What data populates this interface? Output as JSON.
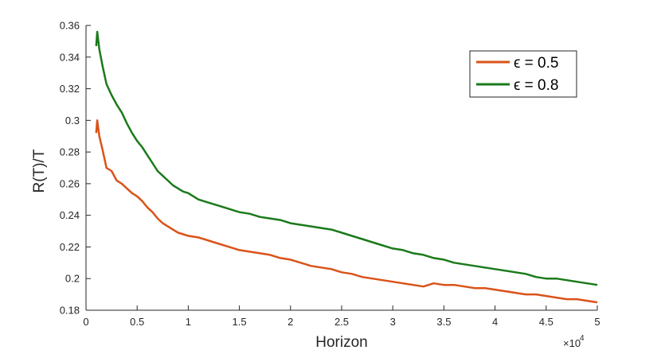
{
  "chart_data": {
    "type": "line",
    "xlabel": "Horizon",
    "ylabel": "R(T)/T",
    "x_exponent_label": "×10",
    "x_exponent_power": "4",
    "xlim": [
      0,
      50000
    ],
    "ylim": [
      0.18,
      0.36
    ],
    "x_ticks": [
      0,
      5000,
      10000,
      15000,
      20000,
      25000,
      30000,
      35000,
      40000,
      45000,
      50000
    ],
    "x_tick_labels": [
      "0",
      "0.5",
      "1",
      "1.5",
      "2",
      "2.5",
      "3",
      "3.5",
      "4",
      "4.5",
      "5"
    ],
    "y_ticks": [
      0.18,
      0.2,
      0.22,
      0.24,
      0.26,
      0.28,
      0.3,
      0.32,
      0.34,
      0.36
    ],
    "y_tick_labels": [
      "0.18",
      "0.2",
      "0.22",
      "0.24",
      "0.26",
      "0.28",
      "0.3",
      "0.32",
      "0.34",
      "0.36"
    ],
    "legend_position": "top-right",
    "series": [
      {
        "name": "ϵ = 0.5",
        "color": "#d95319",
        "x": [
          1000,
          1100,
          1300,
          1600,
          2000,
          2500,
          3000,
          3500,
          4000,
          4500,
          5000,
          5500,
          6000,
          6500,
          7000,
          7500,
          8000,
          8500,
          9000,
          9500,
          10000,
          11000,
          12000,
          13000,
          14000,
          15000,
          16000,
          17000,
          18000,
          19000,
          20000,
          21000,
          22000,
          23000,
          24000,
          25000,
          26000,
          27000,
          28000,
          29000,
          30000,
          31000,
          32000,
          33000,
          34000,
          35000,
          36000,
          37000,
          38000,
          39000,
          40000,
          41000,
          42000,
          43000,
          44000,
          45000,
          46000,
          47000,
          48000,
          49000,
          50000
        ],
        "values": [
          0.292,
          0.3,
          0.29,
          0.282,
          0.27,
          0.268,
          0.262,
          0.26,
          0.257,
          0.254,
          0.252,
          0.249,
          0.245,
          0.242,
          0.238,
          0.235,
          0.233,
          0.231,
          0.229,
          0.228,
          0.227,
          0.226,
          0.224,
          0.222,
          0.22,
          0.218,
          0.217,
          0.216,
          0.215,
          0.213,
          0.212,
          0.21,
          0.208,
          0.207,
          0.206,
          0.204,
          0.203,
          0.201,
          0.2,
          0.199,
          0.198,
          0.197,
          0.196,
          0.195,
          0.197,
          0.196,
          0.196,
          0.195,
          0.194,
          0.194,
          0.193,
          0.192,
          0.191,
          0.19,
          0.19,
          0.189,
          0.188,
          0.187,
          0.187,
          0.186,
          0.185
        ]
      },
      {
        "name": "ϵ = 0.8",
        "color": "#1a7a1a",
        "x": [
          1000,
          1100,
          1300,
          1600,
          2000,
          2500,
          3000,
          3500,
          4000,
          4500,
          5000,
          5500,
          6000,
          6500,
          7000,
          7500,
          8000,
          8500,
          9000,
          9500,
          10000,
          11000,
          12000,
          13000,
          14000,
          15000,
          16000,
          17000,
          18000,
          19000,
          20000,
          21000,
          22000,
          23000,
          24000,
          25000,
          26000,
          27000,
          28000,
          29000,
          30000,
          31000,
          32000,
          33000,
          34000,
          35000,
          36000,
          37000,
          38000,
          39000,
          40000,
          41000,
          42000,
          43000,
          44000,
          45000,
          46000,
          47000,
          48000,
          49000,
          50000
        ],
        "values": [
          0.347,
          0.356,
          0.345,
          0.335,
          0.323,
          0.316,
          0.31,
          0.305,
          0.298,
          0.292,
          0.287,
          0.283,
          0.278,
          0.273,
          0.268,
          0.265,
          0.262,
          0.259,
          0.257,
          0.255,
          0.254,
          0.25,
          0.248,
          0.246,
          0.244,
          0.242,
          0.241,
          0.239,
          0.238,
          0.237,
          0.235,
          0.234,
          0.233,
          0.232,
          0.231,
          0.229,
          0.227,
          0.225,
          0.223,
          0.221,
          0.219,
          0.218,
          0.216,
          0.215,
          0.213,
          0.212,
          0.21,
          0.209,
          0.208,
          0.207,
          0.206,
          0.205,
          0.204,
          0.203,
          0.201,
          0.2,
          0.2,
          0.199,
          0.198,
          0.197,
          0.196
        ]
      }
    ]
  }
}
